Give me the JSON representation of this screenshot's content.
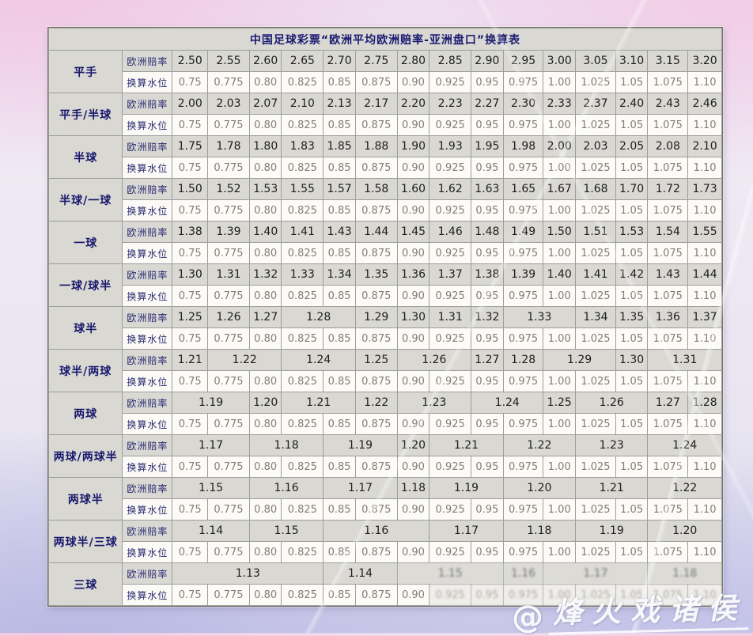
{
  "page": {
    "watermark": {
      "at_symbol": "@",
      "text": "烽火戏诸侯"
    }
  },
  "table": {
    "title": "中国足球彩票“欧洲平均欧洲赔率-亚洲盘口”换算表",
    "odds_row_header": "欧洲赔率",
    "water_row_header": "换算水位",
    "water_levels": [
      "0.75",
      "0.775",
      "0.80",
      "0.825",
      "0.85",
      "0.875",
      "0.90",
      "0.925",
      "0.95",
      "0.975",
      "1.00",
      "1.025",
      "1.05",
      "1.075",
      "1.10"
    ],
    "groups": [
      {
        "label": "平手",
        "odds": [
          {
            "v": "2.50",
            "span": 1
          },
          {
            "v": "2.55",
            "span": 1
          },
          {
            "v": "2.60",
            "span": 1
          },
          {
            "v": "2.65",
            "span": 1
          },
          {
            "v": "2.70",
            "span": 1
          },
          {
            "v": "2.75",
            "span": 1
          },
          {
            "v": "2.80",
            "span": 1
          },
          {
            "v": "2.85",
            "span": 1
          },
          {
            "v": "2.90",
            "span": 1
          },
          {
            "v": "2.95",
            "span": 1
          },
          {
            "v": "3.00",
            "span": 1
          },
          {
            "v": "3.05",
            "span": 1
          },
          {
            "v": "3.10",
            "span": 1
          },
          {
            "v": "3.15",
            "span": 1
          },
          {
            "v": "3.20",
            "span": 1
          }
        ]
      },
      {
        "label": "平手/半球",
        "odds": [
          {
            "v": "2.00",
            "span": 1
          },
          {
            "v": "2.03",
            "span": 1
          },
          {
            "v": "2.07",
            "span": 1
          },
          {
            "v": "2.10",
            "span": 1
          },
          {
            "v": "2.13",
            "span": 1
          },
          {
            "v": "2.17",
            "span": 1
          },
          {
            "v": "2.20",
            "span": 1
          },
          {
            "v": "2.23",
            "span": 1
          },
          {
            "v": "2.27",
            "span": 1
          },
          {
            "v": "2.30",
            "span": 1
          },
          {
            "v": "2.33",
            "span": 1
          },
          {
            "v": "2.37",
            "span": 1
          },
          {
            "v": "2.40",
            "span": 1
          },
          {
            "v": "2.43",
            "span": 1
          },
          {
            "v": "2.46",
            "span": 1
          }
        ]
      },
      {
        "label": "半球",
        "odds": [
          {
            "v": "1.75",
            "span": 1
          },
          {
            "v": "1.78",
            "span": 1
          },
          {
            "v": "1.80",
            "span": 1
          },
          {
            "v": "1.83",
            "span": 1
          },
          {
            "v": "1.85",
            "span": 1
          },
          {
            "v": "1.88",
            "span": 1
          },
          {
            "v": "1.90",
            "span": 1
          },
          {
            "v": "1.93",
            "span": 1
          },
          {
            "v": "1.95",
            "span": 1
          },
          {
            "v": "1.98",
            "span": 1
          },
          {
            "v": "2.00",
            "span": 1
          },
          {
            "v": "2.03",
            "span": 1
          },
          {
            "v": "2.05",
            "span": 1
          },
          {
            "v": "2.08",
            "span": 1
          },
          {
            "v": "2.10",
            "span": 1
          }
        ]
      },
      {
        "label": "半球/一球",
        "odds": [
          {
            "v": "1.50",
            "span": 1
          },
          {
            "v": "1.52",
            "span": 1
          },
          {
            "v": "1.53",
            "span": 1
          },
          {
            "v": "1.55",
            "span": 1
          },
          {
            "v": "1.57",
            "span": 1
          },
          {
            "v": "1.58",
            "span": 1
          },
          {
            "v": "1.60",
            "span": 1
          },
          {
            "v": "1.62",
            "span": 1
          },
          {
            "v": "1.63",
            "span": 1
          },
          {
            "v": "1.65",
            "span": 1
          },
          {
            "v": "1.67",
            "span": 1
          },
          {
            "v": "1.68",
            "span": 1
          },
          {
            "v": "1.70",
            "span": 1
          },
          {
            "v": "1.72",
            "span": 1
          },
          {
            "v": "1.73",
            "span": 1
          }
        ]
      },
      {
        "label": "一球",
        "odds": [
          {
            "v": "1.38",
            "span": 1
          },
          {
            "v": "1.39",
            "span": 1
          },
          {
            "v": "1.40",
            "span": 1
          },
          {
            "v": "1.41",
            "span": 1
          },
          {
            "v": "1.43",
            "span": 1
          },
          {
            "v": "1.44",
            "span": 1
          },
          {
            "v": "1.45",
            "span": 1
          },
          {
            "v": "1.46",
            "span": 1
          },
          {
            "v": "1.48",
            "span": 1
          },
          {
            "v": "1.49",
            "span": 1
          },
          {
            "v": "1.50",
            "span": 1
          },
          {
            "v": "1.51",
            "span": 1
          },
          {
            "v": "1.53",
            "span": 1
          },
          {
            "v": "1.54",
            "span": 1
          },
          {
            "v": "1.55",
            "span": 1
          }
        ]
      },
      {
        "label": "一球/球半",
        "odds": [
          {
            "v": "1.30",
            "span": 1
          },
          {
            "v": "1.31",
            "span": 1
          },
          {
            "v": "1.32",
            "span": 1
          },
          {
            "v": "1.33",
            "span": 1
          },
          {
            "v": "1.34",
            "span": 1
          },
          {
            "v": "1.35",
            "span": 1
          },
          {
            "v": "1.36",
            "span": 1
          },
          {
            "v": "1.37",
            "span": 1
          },
          {
            "v": "1.38",
            "span": 1
          },
          {
            "v": "1.39",
            "span": 1
          },
          {
            "v": "1.40",
            "span": 1
          },
          {
            "v": "1.41",
            "span": 1
          },
          {
            "v": "1.42",
            "span": 1
          },
          {
            "v": "1.43",
            "span": 1
          },
          {
            "v": "1.44",
            "span": 1
          }
        ]
      },
      {
        "label": "球半",
        "odds": [
          {
            "v": "1.25",
            "span": 1
          },
          {
            "v": "1.26",
            "span": 1
          },
          {
            "v": "1.27",
            "span": 1
          },
          {
            "v": "1.28",
            "span": 2
          },
          {
            "v": "1.29",
            "span": 1
          },
          {
            "v": "1.30",
            "span": 1
          },
          {
            "v": "1.31",
            "span": 1
          },
          {
            "v": "1.32",
            "span": 1
          },
          {
            "v": "1.33",
            "span": 2
          },
          {
            "v": "1.34",
            "span": 1
          },
          {
            "v": "1.35",
            "span": 1
          },
          {
            "v": "1.36",
            "span": 1
          },
          {
            "v": "1.37",
            "span": 1
          }
        ]
      },
      {
        "label": "球半/两球",
        "odds": [
          {
            "v": "1.21",
            "span": 1
          },
          {
            "v": "1.22",
            "span": 2
          },
          {
            "v": "1.24",
            "span": 2
          },
          {
            "v": "1.25",
            "span": 1
          },
          {
            "v": "1.26",
            "span": 2
          },
          {
            "v": "1.27",
            "span": 1
          },
          {
            "v": "1.28",
            "span": 1
          },
          {
            "v": "1.29",
            "span": 2
          },
          {
            "v": "1.30",
            "span": 1
          },
          {
            "v": "1.31",
            "span": 2
          }
        ]
      },
      {
        "label": "两球",
        "odds": [
          {
            "v": "1.19",
            "span": 2
          },
          {
            "v": "1.20",
            "span": 1
          },
          {
            "v": "1.21",
            "span": 2
          },
          {
            "v": "1.22",
            "span": 1
          },
          {
            "v": "1.23",
            "span": 2
          },
          {
            "v": "1.24",
            "span": 2
          },
          {
            "v": "1.25",
            "span": 1
          },
          {
            "v": "1.26",
            "span": 2
          },
          {
            "v": "1.27",
            "span": 1
          },
          {
            "v": "1.28",
            "span": 1
          }
        ]
      },
      {
        "label": "两球/两球半",
        "odds": [
          {
            "v": "1.17",
            "span": 2
          },
          {
            "v": "1.18",
            "span": 2
          },
          {
            "v": "1.19",
            "span": 2
          },
          {
            "v": "1.20",
            "span": 1
          },
          {
            "v": "1.21",
            "span": 2
          },
          {
            "v": "1.22",
            "span": 2
          },
          {
            "v": "1.23",
            "span": 2
          },
          {
            "v": "1.24",
            "span": 2
          }
        ]
      },
      {
        "label": "两球半",
        "odds": [
          {
            "v": "1.15",
            "span": 2
          },
          {
            "v": "1.16",
            "span": 2
          },
          {
            "v": "1.17",
            "span": 2
          },
          {
            "v": "1.18",
            "span": 1
          },
          {
            "v": "1.19",
            "span": 2
          },
          {
            "v": "1.20",
            "span": 2
          },
          {
            "v": "1.21",
            "span": 2
          },
          {
            "v": "1.22",
            "span": 2
          }
        ]
      },
      {
        "label": "两球半/三球",
        "odds": [
          {
            "v": "1.14",
            "span": 2
          },
          {
            "v": "1.15",
            "span": 2
          },
          {
            "v": "1.16",
            "span": 3
          },
          {
            "v": "1.17",
            "span": 2
          },
          {
            "v": "1.18",
            "span": 2
          },
          {
            "v": "1.19",
            "span": 2
          },
          {
            "v": "1.20",
            "span": 2
          }
        ]
      },
      {
        "label": "三球",
        "odds": [
          {
            "v": "1.13",
            "span": 4
          },
          {
            "v": "1.14",
            "span": 2
          },
          {
            "v": "1.15",
            "span": 3
          },
          {
            "v": "1.16",
            "span": 1
          },
          {
            "v": "1.17",
            "span": 3
          },
          {
            "v": "1.18",
            "span": 2
          }
        ]
      }
    ]
  }
}
